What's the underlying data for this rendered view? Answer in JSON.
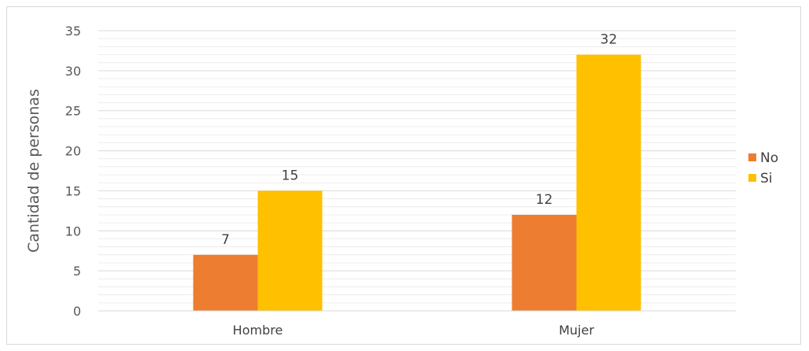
{
  "chart_data": {
    "type": "bar",
    "categories": [
      "Hombre",
      "Mujer"
    ],
    "series": [
      {
        "name": "No",
        "values": [
          7,
          12
        ],
        "color": "#ED7D31"
      },
      {
        "name": "Si",
        "values": [
          15,
          32
        ],
        "color": "#FFC000"
      }
    ],
    "ylabel": "Cantidad de personas",
    "xlabel": "",
    "ylim": [
      0,
      35
    ],
    "yticks": [
      0,
      5,
      10,
      15,
      20,
      25,
      30,
      35
    ],
    "grid": true,
    "legend_position": "right",
    "data_labels": true
  }
}
